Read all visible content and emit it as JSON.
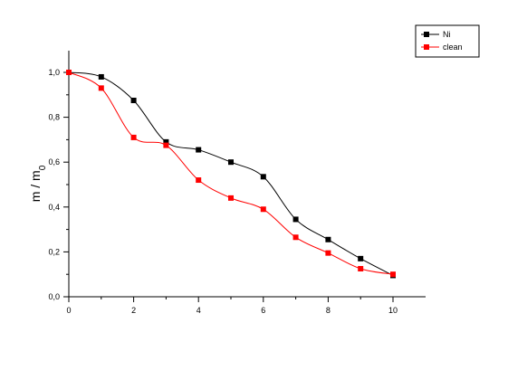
{
  "chart_data": {
    "type": "scatter",
    "title": "",
    "xlabel": "",
    "ylabel_main": "m / m",
    "ylabel_sub": "0",
    "xlim": [
      0,
      10
    ],
    "ylim": [
      0,
      1.0
    ],
    "x_ticks": [
      "0",
      "2",
      "4",
      "6",
      "8",
      "10"
    ],
    "x_tick_values": [
      0,
      2,
      4,
      6,
      8,
      10
    ],
    "y_ticks": [
      "0,0",
      "0,2",
      "0,4",
      "0,6",
      "0,8",
      "1,0"
    ],
    "y_tick_values": [
      0,
      0.2,
      0.4,
      0.6,
      0.8,
      1.0
    ],
    "grid": false,
    "legend_position": "top-right",
    "series": [
      {
        "name": "Ni",
        "color": "#000000",
        "marker": "square",
        "x": [
          0,
          1,
          2,
          3,
          4,
          5,
          6,
          7,
          8,
          9,
          10
        ],
        "y": [
          1.0,
          0.98,
          0.875,
          0.69,
          0.655,
          0.6,
          0.535,
          0.345,
          0.255,
          0.17,
          0.095
        ]
      },
      {
        "name": "clean",
        "color": "#ff0000",
        "marker": "square",
        "x": [
          0,
          1,
          2,
          3,
          4,
          5,
          6,
          7,
          8,
          9,
          10
        ],
        "y": [
          1.0,
          0.93,
          0.71,
          0.675,
          0.52,
          0.44,
          0.39,
          0.265,
          0.195,
          0.125,
          0.1
        ]
      }
    ]
  }
}
